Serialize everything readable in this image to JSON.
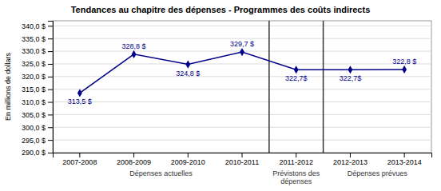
{
  "chart_data": {
    "type": "line",
    "title": "Tendances au chapitre des dépenses - Programmes des coûts indirects",
    "ylabel": "En millions de dollars",
    "categories": [
      "2007-2008",
      "2008-2009",
      "2009-2010",
      "2010-2011",
      "2011-2012",
      "2012-2013",
      "2013-2014"
    ],
    "values": [
      313.5,
      328.8,
      324.8,
      329.7,
      322.7,
      322.7,
      322.8
    ],
    "value_labels": [
      "313,5 $",
      "328,8 $",
      "324,8 $",
      "329,7 $",
      "322,7$",
      "322,7$",
      "322,8 $"
    ],
    "data_labels": true,
    "color": "#00008B",
    "marker": "diamond",
    "grid": true,
    "ylim": [
      290.0,
      342.0
    ],
    "yticks": [
      {
        "value": 290.0,
        "label": "290,0 $"
      },
      {
        "value": 295.0,
        "label": "295,0 $"
      },
      {
        "value": 300.0,
        "label": "300,0 $"
      },
      {
        "value": 305.0,
        "label": "305,0 $"
      },
      {
        "value": 310.0,
        "label": "310,0 $"
      },
      {
        "value": 315.0,
        "label": "315,0 $"
      },
      {
        "value": 320.0,
        "label": "320,0 $"
      },
      {
        "value": 325.0,
        "label": "325,0 $"
      },
      {
        "value": 330.0,
        "label": "330,0 $"
      },
      {
        "value": 335.0,
        "label": "335,0 $"
      },
      {
        "value": 340.0,
        "label": "340,0 $"
      }
    ],
    "annotations": [
      {
        "text": "Dépenses actuelles",
        "from": "2007-2008",
        "to": "2010-2011"
      },
      {
        "text": "Prévistons des\ndépenses",
        "from": "2011-2012",
        "to": "2011-2012"
      },
      {
        "text": "Dépenses prévues",
        "from": "2012-2013",
        "to": "2013-2014"
      }
    ]
  }
}
